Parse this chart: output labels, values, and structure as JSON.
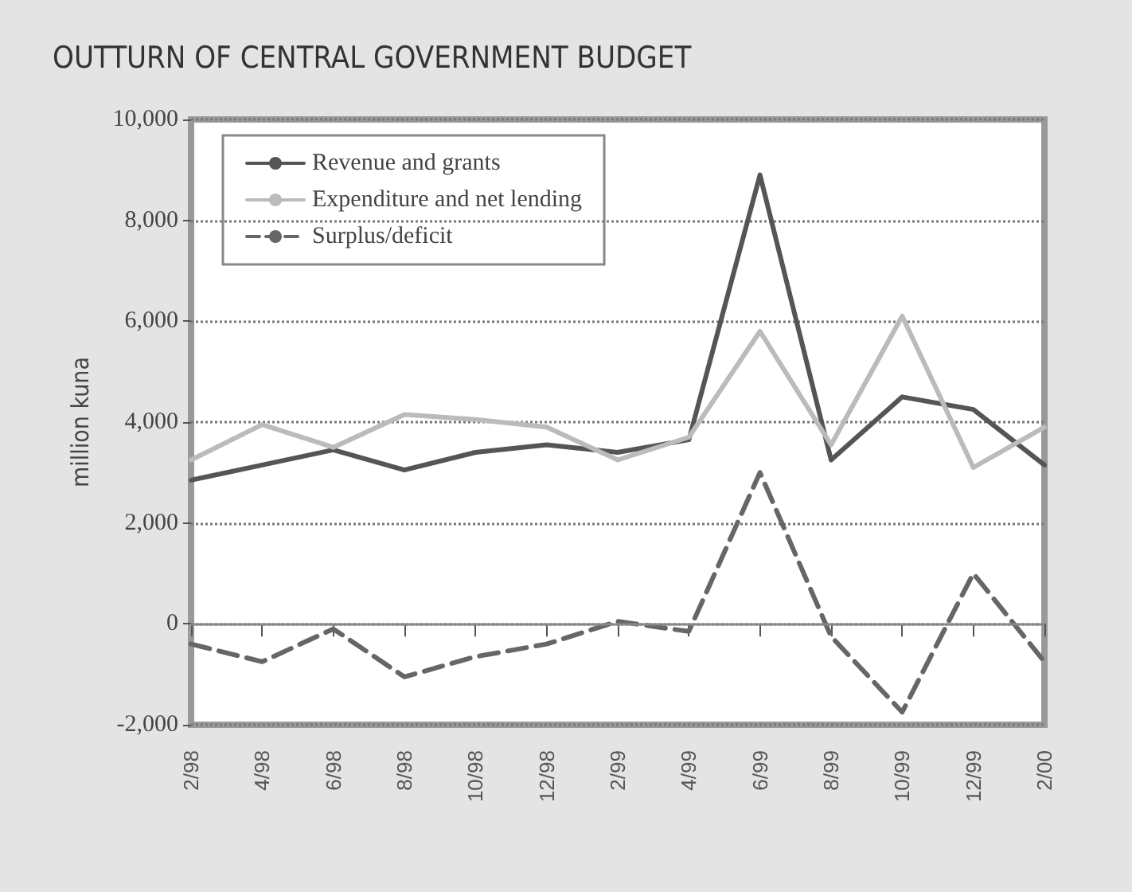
{
  "chart_data": {
    "type": "line",
    "title": "OUTTURN OF CENTRAL GOVERNMENT BUDGET",
    "ylabel": "million kuna",
    "categories": [
      "2/98",
      "4/98",
      "6/98",
      "8/98",
      "10/98",
      "12/98",
      "2/99",
      "4/99",
      "6/99",
      "8/99",
      "10/99",
      "12/99",
      "2/00"
    ],
    "series": [
      {
        "name": "Revenue and grants",
        "color": "#555555",
        "line_style": "solid",
        "values": [
          2850,
          3150,
          3450,
          3050,
          3400,
          3550,
          3400,
          3650,
          8900,
          3250,
          4500,
          4250,
          3150
        ]
      },
      {
        "name": "Expenditure and net lending",
        "color": "#bbbbbb",
        "line_style": "solid",
        "values": [
          3250,
          3950,
          3500,
          4150,
          4050,
          3900,
          3250,
          3700,
          5800,
          3550,
          6100,
          3100,
          3900
        ]
      },
      {
        "name": "Surplus/deficit",
        "color": "#666666",
        "line_style": "dashed",
        "values": [
          -400,
          -750,
          -100,
          -1050,
          -650,
          -400,
          50,
          -150,
          3000,
          -250,
          -1750,
          1000,
          -750
        ]
      }
    ],
    "ylim": [
      -2000,
      10000
    ],
    "yticks": [
      {
        "value": -2000,
        "label": "-2,000"
      },
      0,
      {
        "value": 2000,
        "label": "2,000"
      },
      {
        "value": 4000,
        "label": "4,000"
      },
      {
        "value": 6000,
        "label": "6,000"
      },
      {
        "value": 8000,
        "label": "8,000"
      },
      {
        "value": 10000,
        "label": "10,000"
      }
    ],
    "ref_lines": [
      {
        "axis": "y",
        "value": 0,
        "color": "#888888",
        "line_style": "solid"
      }
    ],
    "grid": "y",
    "legend": "top left",
    "marker": "none"
  }
}
